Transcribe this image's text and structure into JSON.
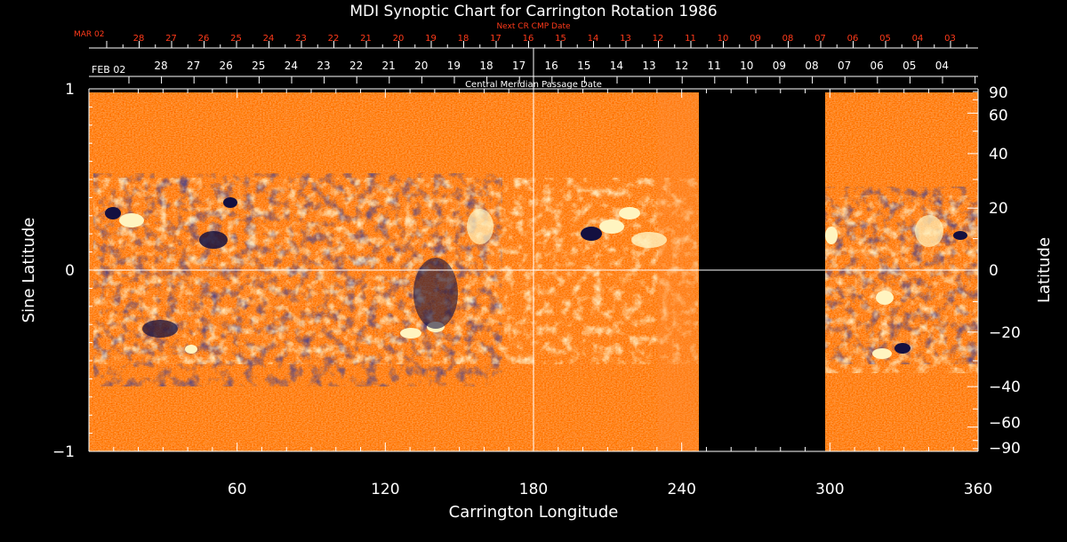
{
  "chart_data": {
    "type": "heatmap",
    "title": "MDI Synoptic Chart for Carrington Rotation 1986",
    "xlabel": "Carrington Longitude",
    "ylabel_left": "Sine Latitude",
    "ylabel_right": "Latitude",
    "xlim": [
      0,
      360
    ],
    "ylim": [
      -1,
      1
    ],
    "x_ticks": [
      60,
      120,
      180,
      240,
      300,
      360
    ],
    "y_ticks_left": [
      1,
      0,
      -1
    ],
    "y_ticks_right": [
      90,
      60,
      40,
      20,
      0,
      -20,
      -40,
      -60,
      -90
    ],
    "data_gap_longitude": [
      247,
      298
    ],
    "next_cr_axis": {
      "label": "Next CR CMP Date",
      "start_label": "MAR 02",
      "days": [
        "28",
        "27",
        "26",
        "25",
        "24",
        "23",
        "22",
        "21",
        "20",
        "19",
        "18",
        "17",
        "16",
        "15",
        "14",
        "13",
        "12",
        "11",
        "10",
        "09",
        "08",
        "07",
        "06",
        "05",
        "04",
        "03"
      ]
    },
    "cmp_axis": {
      "label": "Central Meridian Passage Date",
      "start_label": "FEB 02",
      "days": [
        "28",
        "27",
        "26",
        "25",
        "24",
        "23",
        "22",
        "21",
        "20",
        "19",
        "18",
        "17",
        "16",
        "15",
        "14",
        "13",
        "12",
        "11",
        "10",
        "09",
        "08",
        "07",
        "06",
        "05",
        "04"
      ]
    },
    "colors": {
      "background": "#000000",
      "field_base": "#ff5a00",
      "positive": "#fff4c0",
      "negative": "#141040",
      "red_axis": "#ff3a1a"
    }
  }
}
